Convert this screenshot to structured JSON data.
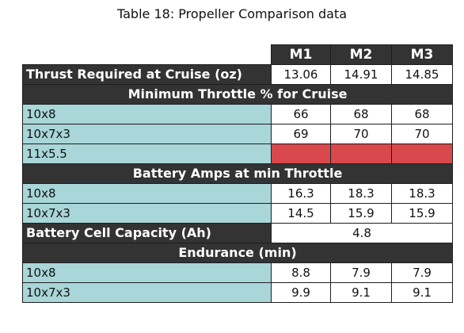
{
  "caption": "Table 18: Propeller Comparison data",
  "columns": [
    "M1",
    "M2",
    "M3"
  ],
  "thrust": {
    "label": "Thrust Required at Cruise (oz)",
    "values": [
      "13.06",
      "14.91",
      "14.85"
    ]
  },
  "min_throttle": {
    "title": "Minimum Throttle % for Cruise",
    "rows": [
      {
        "label": "10x8",
        "values": [
          "66",
          "68",
          "68"
        ]
      },
      {
        "label": "10x7x3",
        "values": [
          "69",
          "70",
          "70"
        ]
      },
      {
        "label": "11x5.5",
        "values": [
          "",
          "",
          ""
        ]
      }
    ]
  },
  "battery_amps": {
    "title": "Battery Amps at min Throttle",
    "rows": [
      {
        "label": "10x8",
        "values": [
          "16.3",
          "18.3",
          "18.3"
        ]
      },
      {
        "label": "10x7x3",
        "values": [
          "14.5",
          "15.9",
          "15.9"
        ]
      }
    ]
  },
  "capacity": {
    "label": "Battery Cell Capacity (Ah)",
    "value": "4.8"
  },
  "endurance": {
    "title": "Endurance (min)",
    "rows": [
      {
        "label": "10x8",
        "values": [
          "8.8",
          "7.9",
          "7.9"
        ]
      },
      {
        "label": "10x7x3",
        "values": [
          "9.9",
          "9.1",
          "9.1"
        ]
      }
    ]
  },
  "colors": {
    "header": "#333333",
    "label_bg": "#a9d6d8",
    "missing": "#d9484c"
  }
}
